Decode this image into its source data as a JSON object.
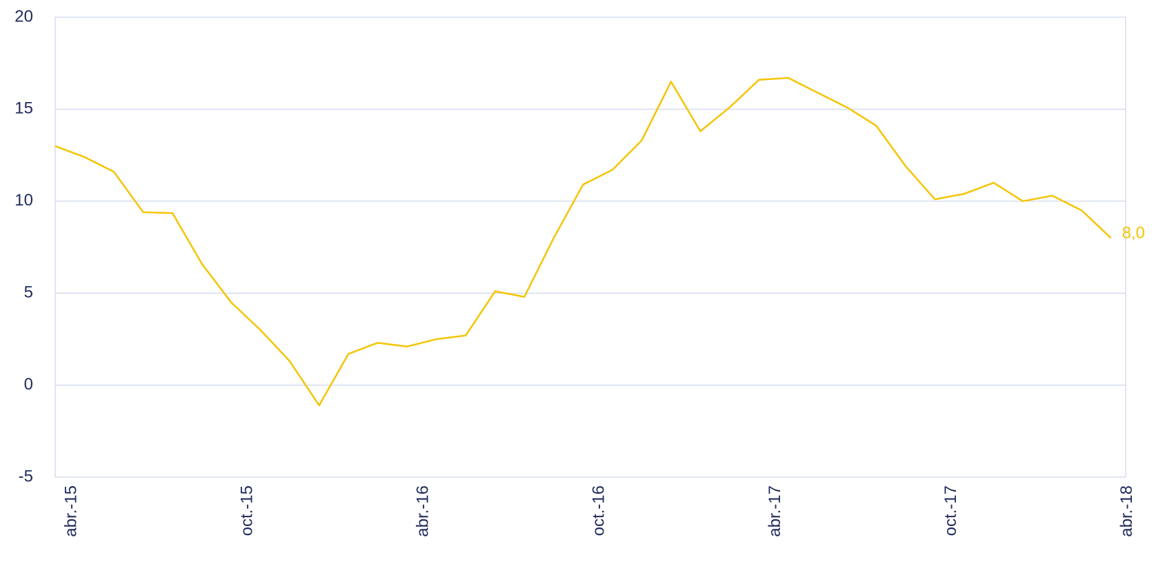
{
  "chart_data": {
    "type": "line",
    "categories": [
      "abr.-15",
      null,
      null,
      null,
      null,
      null,
      "oct.-15",
      null,
      null,
      null,
      null,
      null,
      "abr.-16",
      null,
      null,
      null,
      null,
      null,
      "oct.-16",
      null,
      null,
      null,
      null,
      null,
      "abr.-17",
      null,
      null,
      null,
      null,
      null,
      "oct.-17",
      null,
      null,
      null,
      null,
      null,
      "abr.-18"
    ],
    "values": [
      13.0,
      12.4,
      11.6,
      9.4,
      9.35,
      6.6,
      4.5,
      3.0,
      1.3,
      -1.1,
      1.7,
      2.3,
      2.1,
      2.5,
      2.7,
      5.1,
      4.8,
      8.0,
      10.9,
      11.7,
      13.3,
      16.5,
      13.8,
      15.1,
      16.6,
      16.7,
      15.9,
      15.1,
      14.1,
      11.9,
      10.1,
      10.4,
      11.0,
      10.0,
      10.3,
      9.5,
      8.0
    ],
    "value_labels": [
      null,
      null,
      null,
      null,
      null,
      null,
      null,
      null,
      null,
      null,
      null,
      null,
      null,
      null,
      null,
      null,
      null,
      null,
      null,
      null,
      null,
      null,
      null,
      null,
      null,
      null,
      null,
      null,
      null,
      null,
      null,
      null,
      null,
      null,
      null,
      null,
      "8,0"
    ],
    "color": "#f5c400",
    "ylim": [
      -5,
      20
    ],
    "yticks": [
      -5,
      0,
      5,
      10,
      15,
      20
    ],
    "grid": true
  }
}
